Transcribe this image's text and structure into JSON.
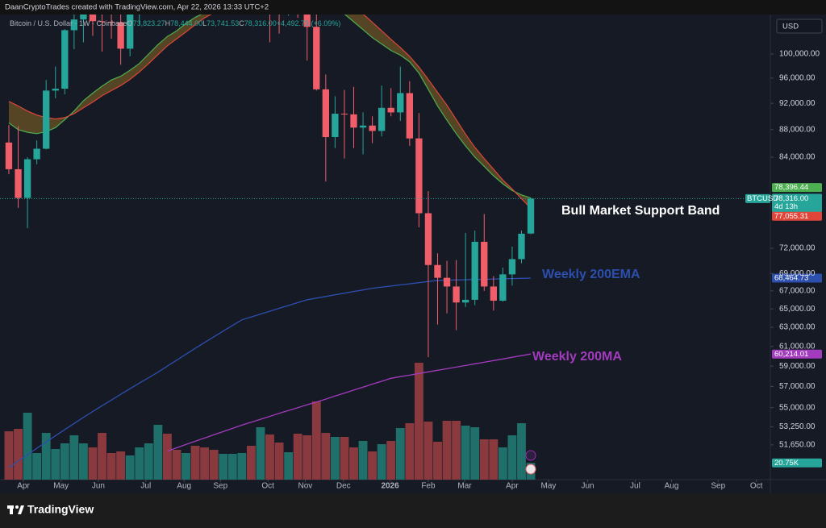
{
  "header": "DaanCryptoTrades created with TradingView.com, Apr 22, 2026 13:33 UTC+2",
  "footer": {
    "brand": "TradingView"
  },
  "chart_data": {
    "type": "candlestick",
    "title": "Bitcoin / U.S. Dollar · 1W · Coinbase",
    "ohlc_legend": {
      "items": [
        {
          "key": "O",
          "text": "73,823.27"
        },
        {
          "key": "H",
          "text": "78,444.00"
        },
        {
          "key": "L",
          "text": "73,741.53"
        },
        {
          "key": "C",
          "text": "78,316.00"
        }
      ],
      "change": "+4,492.73 (+6.09%)"
    },
    "currency": "USD",
    "symbol": "BTCUSD",
    "close_label": "78,316.00",
    "countdown": "4d 13h",
    "up_color": "#26a69a",
    "down_color": "#f05e6a",
    "log_scale": true,
    "grid": false,
    "categories": [
      null,
      null,
      null,
      null,
      null,
      null,
      null,
      null,
      null,
      null,
      null,
      null,
      null,
      null,
      null,
      null,
      null,
      null,
      null,
      null,
      null,
      null,
      null,
      null,
      null,
      null,
      null,
      null,
      null,
      null,
      null,
      null,
      null,
      null,
      null,
      null,
      null,
      null,
      null,
      null,
      null,
      null,
      null,
      null,
      null,
      null,
      null,
      null,
      null,
      null,
      null,
      null,
      null,
      null,
      null,
      null,
      null
    ],
    "open": [
      86100,
      82300,
      78400,
      83700,
      85200,
      94000,
      94300,
      104100,
      106000,
      109000,
      105700,
      105600,
      105500,
      100900,
      108400,
      109200,
      119100,
      119800,
      119400,
      114200,
      119300,
      117400,
      113500,
      108300,
      111200,
      115300,
      115300,
      112100,
      123500,
      115200,
      108700,
      114500,
      110600,
      104700,
      94200,
      86900,
      90400,
      90300,
      88300,
      88600,
      87800,
      91300,
      90600,
      93600,
      86700,
      76400,
      70000,
      68500,
      67500,
      65700,
      66000,
      72800,
      67500,
      65900,
      68900,
      70700,
      73823.27
    ],
    "high": [
      88700,
      88500,
      84000,
      86400,
      95700,
      97900,
      104300,
      107100,
      111900,
      110700,
      110400,
      110600,
      108900,
      108500,
      110500,
      119500,
      123200,
      120200,
      119800,
      122300,
      124500,
      117600,
      113600,
      113400,
      116700,
      117900,
      115400,
      125700,
      126200,
      115900,
      116000,
      116400,
      110700,
      107500,
      96600,
      93100,
      94100,
      94600,
      90600,
      90000,
      94800,
      94400,
      97900,
      95500,
      90500,
      79300,
      71400,
      70500,
      70600,
      73900,
      74200,
      76300,
      68700,
      69700,
      72200,
      74200,
      78444.0
    ],
    "low": [
      81600,
      77100,
      74500,
      83000,
      85100,
      92800,
      93400,
      100800,
      102000,
      103100,
      100400,
      102600,
      98200,
      99600,
      105100,
      107500,
      115700,
      114700,
      112000,
      112700,
      116800,
      110700,
      107300,
      107300,
      110600,
      114700,
      108600,
      111500,
      102000,
      103500,
      106700,
      106300,
      98900,
      94000,
      80600,
      85300,
      83800,
      85300,
      84400,
      86000,
      87000,
      90000,
      89300,
      85600,
      74600,
      59900,
      63300,
      64500,
      62700,
      65200,
      65400,
      67000,
      64800,
      65800,
      67600,
      70200,
      73741.53
    ],
    "close": [
      82300,
      78400,
      83700,
      85200,
      94000,
      94300,
      104100,
      106000,
      109000,
      105700,
      105600,
      105500,
      100900,
      108400,
      109200,
      119100,
      119800,
      119400,
      114200,
      119300,
      117400,
      113500,
      108300,
      111200,
      115300,
      115300,
      112100,
      123500,
      115200,
      108700,
      114500,
      110600,
      104700,
      94200,
      86900,
      90400,
      90300,
      88300,
      88600,
      87800,
      91300,
      90600,
      93600,
      86700,
      76400,
      70000,
      68500,
      67500,
      65700,
      66000,
      72800,
      67500,
      65900,
      68900,
      70700,
      73800,
      78316.0
    ],
    "volume": {
      "values": [
        60,
        63,
        83,
        33,
        58,
        38,
        45,
        55,
        45,
        40,
        58,
        33,
        35,
        30,
        40,
        45,
        68,
        57,
        37,
        33,
        42,
        40,
        37,
        32,
        32,
        33,
        42,
        65,
        56,
        46,
        34,
        57,
        55,
        97,
        58,
        53,
        53,
        40,
        48,
        35,
        44,
        48,
        64,
        70,
        145,
        72,
        47,
        73,
        73,
        67,
        65,
        50,
        50,
        40,
        55,
        70,
        20.75
      ],
      "ylim": [
        0,
        577
      ],
      "last_label": "20.75K",
      "up_color": "#1f6f6a",
      "down_color": "#8a3a3f"
    },
    "xlim": [
      -0.95,
      81.7
    ],
    "xticks": [
      {
        "value": 1.56,
        "label": "Apr"
      },
      {
        "value": 5.6,
        "label": "May"
      },
      {
        "value": 9.6,
        "label": "Jun"
      },
      {
        "value": 14.7,
        "label": "Jul"
      },
      {
        "value": 18.8,
        "label": "Aug"
      },
      {
        "value": 22.7,
        "label": "Sep"
      },
      {
        "value": 27.8,
        "label": "Oct"
      },
      {
        "value": 31.8,
        "label": "Nov"
      },
      {
        "value": 35.9,
        "label": "Dec"
      },
      {
        "value": 40.9,
        "label": "2026"
      },
      {
        "value": 45.0,
        "label": "Feb"
      },
      {
        "value": 48.9,
        "label": "Mar"
      },
      {
        "value": 54.0,
        "label": "Apr"
      },
      {
        "value": 57.9,
        "label": "May"
      },
      {
        "value": 62.1,
        "label": "Jun"
      },
      {
        "value": 67.2,
        "label": "Jul"
      },
      {
        "value": 71.1,
        "label": "Aug"
      },
      {
        "value": 76.1,
        "label": "Sep"
      },
      {
        "value": 80.2,
        "label": "Oct"
      }
    ],
    "ylim": [
      48700,
      106900
    ],
    "yticks": [
      {
        "value": 100000,
        "label": "100,000.00"
      },
      {
        "value": 96000,
        "label": "96,000.00"
      },
      {
        "value": 92000,
        "label": "92,000.00"
      },
      {
        "value": 88000,
        "label": "88,000.00"
      },
      {
        "value": 84000,
        "label": "84,000.00"
      },
      {
        "value": 72000,
        "label": "72,000.00"
      },
      {
        "value": 69000,
        "label": "69,000.00"
      },
      {
        "value": 67000,
        "label": "67,000.00"
      },
      {
        "value": 65000,
        "label": "65,000.00"
      },
      {
        "value": 63000,
        "label": "63,000.00"
      },
      {
        "value": 61000,
        "label": "61,000.00"
      },
      {
        "value": 59000,
        "label": "59,000.00"
      },
      {
        "value": 57000,
        "label": "57,000.00"
      },
      {
        "value": 55000,
        "label": "55,000.00"
      },
      {
        "value": 53250,
        "label": "53,250.00"
      },
      {
        "value": 51650,
        "label": "51,650.00"
      }
    ],
    "band": {
      "label": "Bull Market Support Band",
      "label_color": "#ffffff",
      "fill": "#6b5424",
      "series": [
        {
          "color": "#4caf50",
          "last_label": "78,396.44",
          "values": [
            89000,
            88000,
            87600,
            87400,
            87700,
            88300,
            89500,
            90800,
            92400,
            93600,
            94700,
            95700,
            96300,
            97300,
            98400,
            100000,
            101600,
            103000,
            104000,
            105300,
            106400,
            107200,
            107600,
            108000,
            108700,
            109400,
            110000,
            110600,
            111600,
            112200,
            112700,
            112900,
            112700,
            111500,
            109800,
            108300,
            107000,
            105600,
            104200,
            102800,
            101700,
            100600,
            99800,
            98700,
            96800,
            94200,
            91600,
            89400,
            87400,
            85600,
            84000,
            82700,
            81400,
            80300,
            79400,
            78800,
            78396.44
          ]
        },
        {
          "color": "#e0453a",
          "last_label": "77,055.31",
          "values": [
            92300,
            91600,
            90800,
            90200,
            89800,
            89600,
            89800,
            90400,
            91300,
            92200,
            93200,
            94000,
            94800,
            95800,
            97000,
            98400,
            99900,
            101400,
            102600,
            103800,
            105100,
            106300,
            107200,
            108100,
            109300,
            110300,
            111100,
            111800,
            112500,
            113000,
            113300,
            113600,
            113500,
            113000,
            111900,
            110800,
            109800,
            108500,
            107000,
            105500,
            104000,
            102500,
            101100,
            99600,
            97800,
            95800,
            93700,
            91700,
            89500,
            87300,
            85400,
            83800,
            82300,
            80800,
            79600,
            78300,
            77055.31
          ]
        }
      ]
    },
    "overlays": [
      {
        "label": "Weekly 200EMA",
        "color": "#2c4fae",
        "last_label": "68,464.73",
        "values": [
          49700,
          50250,
          50800,
          51350,
          51900,
          52450,
          53000,
          53550,
          54100,
          54640,
          55180,
          55710,
          56250,
          56790,
          57330,
          57860,
          58400,
          59000,
          59600,
          60200,
          60800,
          61400,
          62000,
          62600,
          63200,
          63800,
          64110,
          64430,
          64740,
          65060,
          65370,
          65690,
          66000,
          66190,
          66370,
          66560,
          66740,
          66930,
          67110,
          67300,
          67430,
          67560,
          67690,
          67810,
          67940,
          68070,
          68200,
          68230,
          68250,
          68280,
          68310,
          68330,
          68360,
          68380,
          68410,
          68440,
          68464.73
        ]
      },
      {
        "label": "Weekly 200MA",
        "color": "#a23bbd",
        "last_label": "60,214.01",
        "values": [
          null,
          null,
          null,
          null,
          null,
          null,
          null,
          null,
          null,
          null,
          null,
          null,
          null,
          null,
          null,
          null,
          null,
          51100,
          51390,
          51680,
          51960,
          52250,
          52540,
          52820,
          53110,
          53400,
          53670,
          53930,
          54200,
          54470,
          54730,
          55000,
          55270,
          55530,
          55800,
          56090,
          56370,
          56660,
          56940,
          57230,
          57510,
          57800,
          57960,
          58110,
          58270,
          58430,
          58590,
          58740,
          58900,
          59060,
          59230,
          59390,
          59560,
          59720,
          59890,
          60050,
          60214.01
        ]
      }
    ]
  }
}
